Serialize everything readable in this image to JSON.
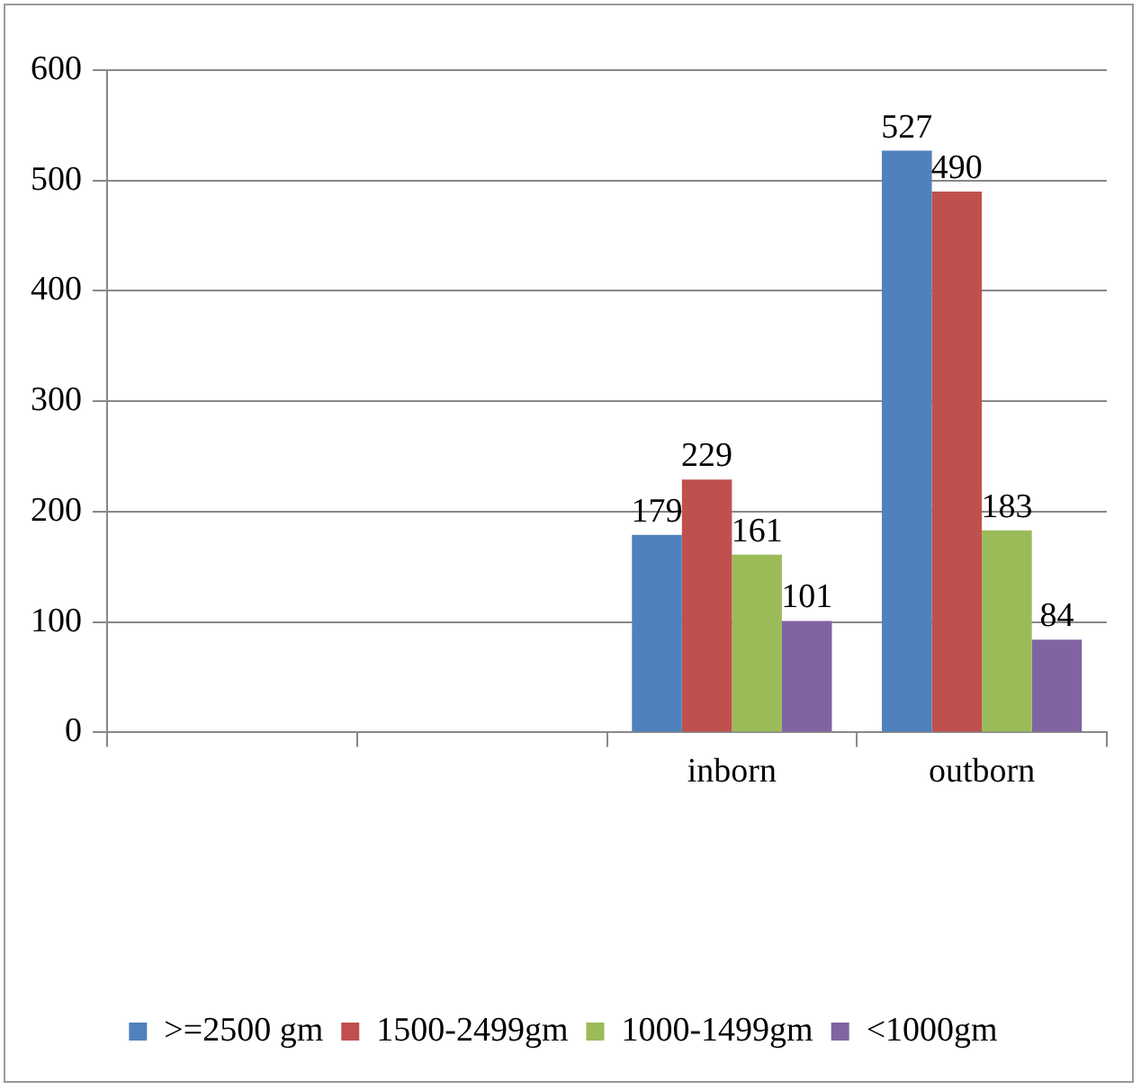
{
  "chart_data": {
    "type": "bar",
    "categories": [
      null,
      null,
      "inborn",
      "outborn"
    ],
    "series": [
      {
        "name": ">=2500 gm",
        "color": "#4f81bd",
        "values": [
          null,
          null,
          179,
          527
        ]
      },
      {
        "name": "1500-2499gm",
        "color": "#c0504d",
        "values": [
          null,
          null,
          229,
          490
        ]
      },
      {
        "name": "1000-1499gm",
        "color": "#9bbb59",
        "values": [
          null,
          null,
          161,
          183
        ]
      },
      {
        "name": "<1000gm",
        "color": "#8064a2",
        "values": [
          null,
          null,
          101,
          84
        ]
      }
    ],
    "ylim": [
      0,
      600
    ],
    "yticks": [
      0,
      100,
      200,
      300,
      400,
      500,
      600
    ],
    "grid": "y",
    "legend": "bottom",
    "data_labels": true
  }
}
